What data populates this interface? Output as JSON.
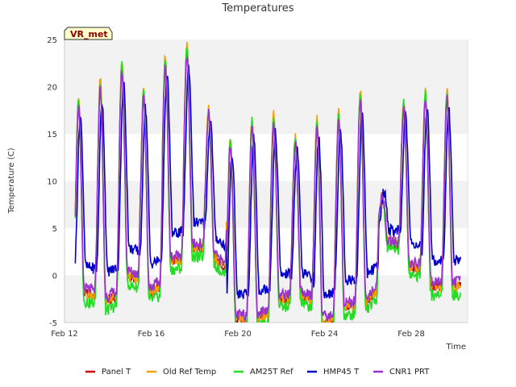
{
  "chart_data": {
    "type": "line",
    "title": "Temperatures",
    "xlabel": "Time",
    "ylabel": "Temperature (C)",
    "badge": "VR_met",
    "xlim": [
      0,
      18.6
    ],
    "ylim": [
      -5,
      25
    ],
    "xticks": [
      {
        "label": "Feb 12",
        "value": 0
      },
      {
        "label": "Feb 16",
        "value": 4
      },
      {
        "label": "Feb 20",
        "value": 8
      },
      {
        "label": "Feb 24",
        "value": 12
      },
      {
        "label": "Feb 28",
        "value": 16
      }
    ],
    "yticks": [
      -5,
      0,
      5,
      10,
      15,
      20,
      25
    ],
    "bands": [
      [
        -5,
        0
      ],
      [
        5,
        10
      ],
      [
        15,
        20
      ],
      [
        25,
        25
      ]
    ],
    "daily_cycles": [
      {
        "day": 12,
        "max": 18.0,
        "min": -1.5
      },
      {
        "day": 13,
        "max": 20.0,
        "min": -3.0
      },
      {
        "day": 14,
        "max": 22.0,
        "min": 0.5
      },
      {
        "day": 15,
        "max": 19.0,
        "min": -2.0
      },
      {
        "day": 16,
        "max": 22.5,
        "min": 1.5
      },
      {
        "day": 17,
        "max": 24.0,
        "min": 3.0
      },
      {
        "day": 18,
        "max": 17.5,
        "min": 3.0
      },
      {
        "day": 19,
        "max": 14.0,
        "min": -4.5
      },
      {
        "day": 20,
        "max": 16.0,
        "min": -4.5
      },
      {
        "day": 21,
        "max": 16.5,
        "min": -2.5
      },
      {
        "day": 22,
        "max": 14.0,
        "min": -1.5
      },
      {
        "day": 23,
        "max": 16.0,
        "min": -5.0
      },
      {
        "day": 24,
        "max": 16.5,
        "min": -3.0
      },
      {
        "day": 25,
        "max": 19.5,
        "min": -3.5
      },
      {
        "day": 26,
        "max": 8.0,
        "min": 4.0
      },
      {
        "day": 27,
        "max": 18.0,
        "min": 1.5
      },
      {
        "day": 28,
        "max": 19.0,
        "min": -1.0
      }
    ],
    "series": [
      {
        "name": "Panel T",
        "color": "#cc0000",
        "offset": -0.2,
        "amp": 1.0,
        "lag": 0.0
      },
      {
        "name": "Old Ref Temp",
        "color": "#f5a000",
        "offset": 0.2,
        "amp": 1.04,
        "lag": 0.0
      },
      {
        "name": "AM25T Ref",
        "color": "#22dd22",
        "offset": -0.4,
        "amp": 1.07,
        "lag": 0.0
      },
      {
        "name": "HMP45 T",
        "color": "#0000cc",
        "offset": 0.6,
        "amp": 0.8,
        "lag": 0.08
      },
      {
        "name": "CNR1 PRT",
        "color": "#9933cc",
        "offset": 0.0,
        "amp": 0.97,
        "lag": 0.0
      }
    ],
    "colors": {
      "band": "#f2f2f2",
      "plot_bg": "#ffffff",
      "axis": "#cccccc",
      "badge_bg": "#ffffcc"
    }
  }
}
